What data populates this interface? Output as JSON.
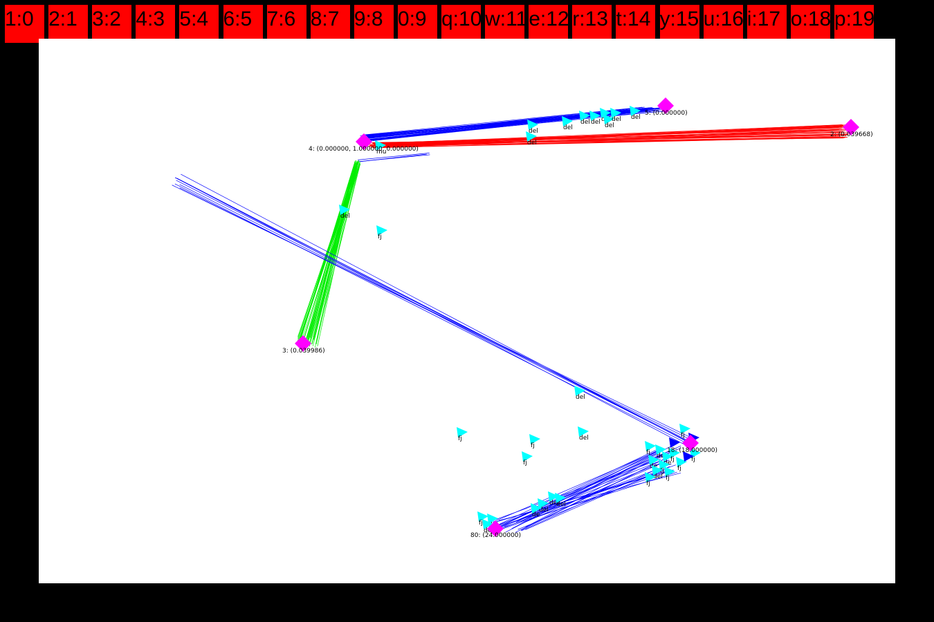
{
  "toolbar": {
    "tabs": [
      {
        "label": "1:0"
      },
      {
        "label": "2:1"
      },
      {
        "label": "3:2"
      },
      {
        "label": "4:3"
      },
      {
        "label": "5:4"
      },
      {
        "label": "6:5"
      },
      {
        "label": "7:6"
      },
      {
        "label": "8:7"
      },
      {
        "label": "9:8"
      },
      {
        "label": "0:9"
      },
      {
        "label": "q:10"
      },
      {
        "label": "w:11"
      },
      {
        "label": "e:12"
      },
      {
        "label": "r:13"
      },
      {
        "label": "t:14"
      },
      {
        "label": "y:15"
      },
      {
        "label": "u:16"
      },
      {
        "label": "i:17"
      },
      {
        "label": "o:18"
      },
      {
        "label": "p:19"
      }
    ]
  },
  "graph": {
    "colors": {
      "node": "#ff00ff",
      "marker": "#00ffff",
      "marker_dark": "#0000ff",
      "edge_blue": "#0000ff",
      "edge_red": "#ff0000",
      "edge_green": "#00ee00",
      "tab": "#ff0000"
    },
    "node_labels": {
      "n4": "4: (0.000000, 1.000000, 0.000000)",
      "n5": "5: (0.000000)",
      "n2": "2: (0.039668)",
      "n3": "3: (0.039986)",
      "n18": "18: (18.000000)",
      "n80": "80: (24.000000)"
    },
    "marker_labels": [
      "del",
      "fj",
      "mu",
      "de"
    ]
  }
}
